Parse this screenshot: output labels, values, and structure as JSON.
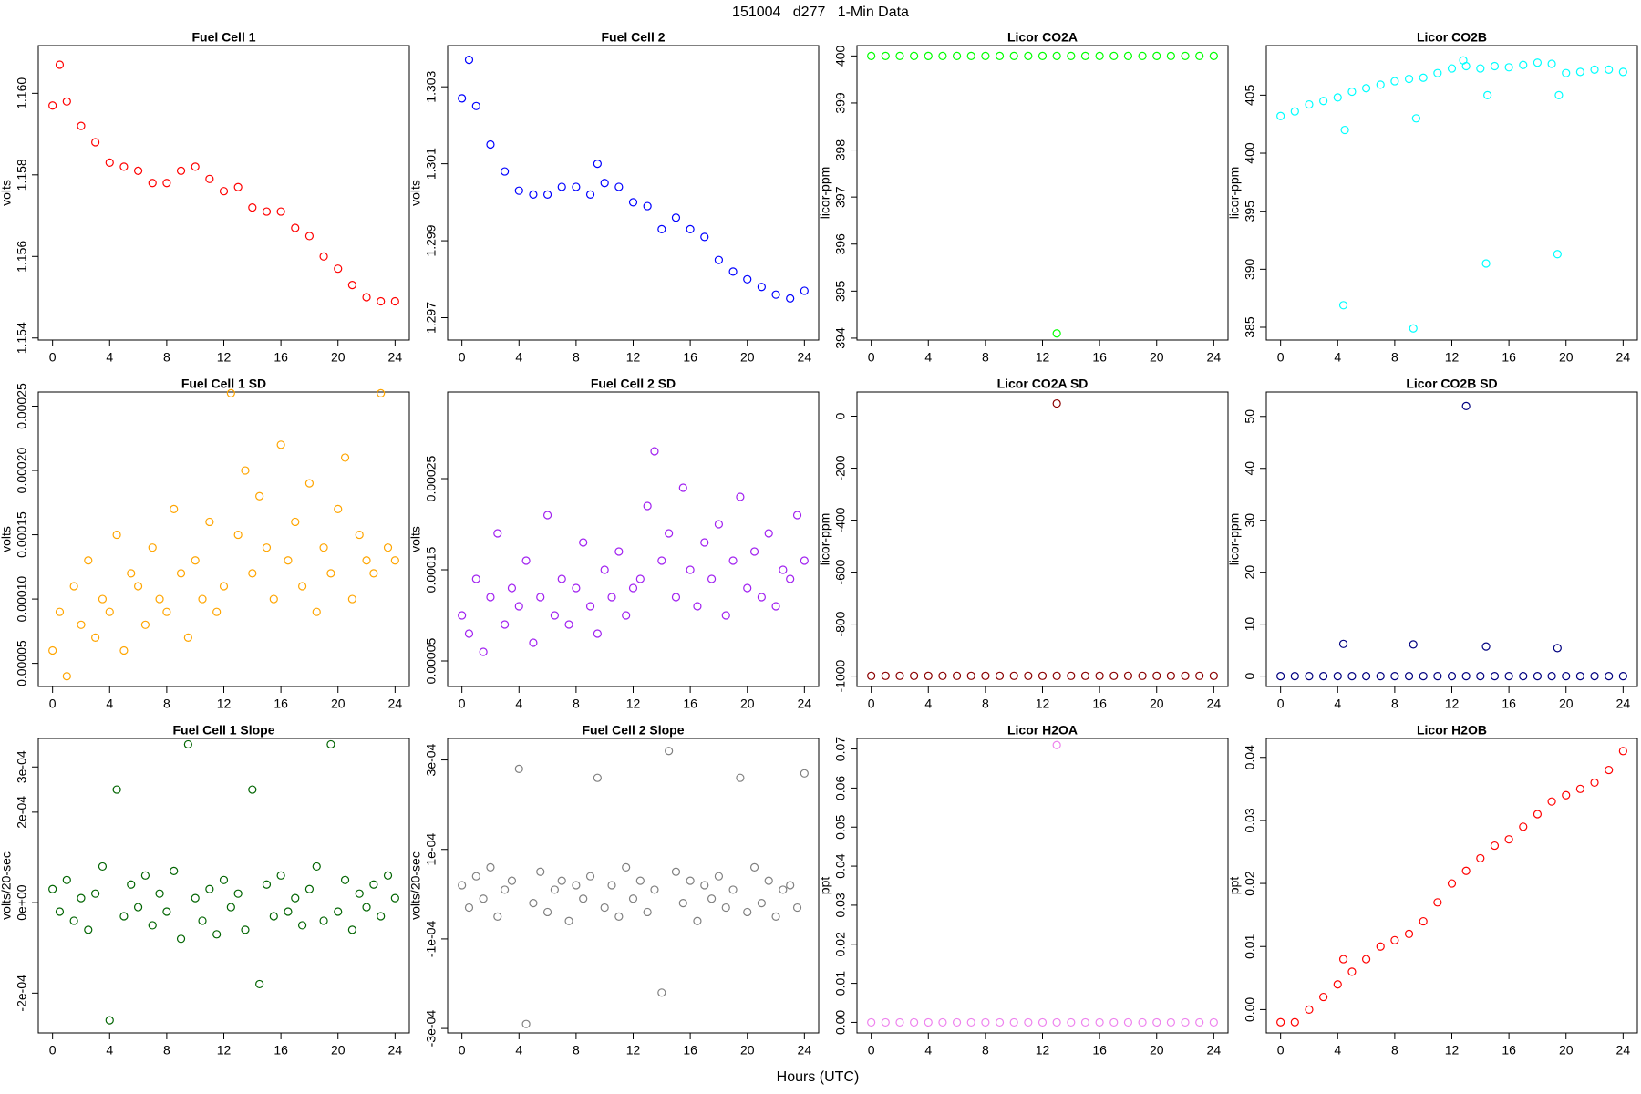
{
  "title": "151004   d277   1-Min Data",
  "x_label": "Hours (UTC)",
  "chart_data": [
    {
      "type": "scatter",
      "title": "Fuel Cell 1",
      "y_label": "volts",
      "color": "#ff0000",
      "x": [
        0,
        0.5,
        1,
        2,
        3,
        4,
        5,
        6,
        7,
        8,
        9,
        10,
        11,
        12,
        13,
        14,
        15,
        16,
        17,
        18,
        19,
        20,
        21,
        22,
        23,
        24
      ],
      "values": [
        1.1597,
        1.1607,
        1.1598,
        1.1592,
        1.1588,
        1.1583,
        1.1582,
        1.1581,
        1.1578,
        1.1578,
        1.1581,
        1.1582,
        1.1579,
        1.1576,
        1.1577,
        1.1572,
        1.1571,
        1.1571,
        1.1567,
        1.1565,
        1.156,
        1.1557,
        1.1553,
        1.155,
        1.1549,
        1.1549
      ],
      "xlim": [
        -1,
        25
      ],
      "xticks": [
        0,
        4,
        8,
        12,
        16,
        20,
        24
      ],
      "ylim": [
        1.15395,
        1.16117
      ],
      "yticks": [
        1.154,
        1.156,
        1.158,
        {
          "value": 1.16,
          "label": "1.160"
        }
      ]
    },
    {
      "type": "scatter",
      "title": "Fuel Cell 2",
      "y_label": "volts",
      "color": "#0000ff",
      "x": [
        0,
        0.5,
        1,
        2,
        3,
        4,
        5,
        6,
        7,
        8,
        9,
        9.5,
        10,
        11,
        12,
        13,
        14,
        15,
        16,
        17,
        18,
        19,
        20,
        21,
        22,
        23,
        24
      ],
      "values": [
        1.3027,
        1.3037,
        1.3025,
        1.3015,
        1.3008,
        1.3003,
        1.3002,
        1.3002,
        1.3004,
        1.3004,
        1.3002,
        1.301,
        1.3005,
        1.3004,
        1.3,
        1.2999,
        1.2993,
        1.2996,
        1.2993,
        1.2991,
        1.2985,
        1.2982,
        1.298,
        1.2978,
        1.2976,
        1.2975,
        1.2977
      ],
      "xlim": [
        -1,
        25
      ],
      "xticks": [
        0,
        4,
        8,
        12,
        16,
        20,
        24
      ],
      "ylim": [
        1.29642,
        1.30407
      ],
      "yticks": [
        1.297,
        1.299,
        1.301,
        1.303
      ]
    },
    {
      "type": "scatter",
      "title": "Licor CO2A",
      "y_label": "licor-ppm",
      "color": "#00ff00",
      "x": [
        0,
        1,
        2,
        3,
        4,
        5,
        6,
        7,
        8,
        9,
        10,
        11,
        12,
        13,
        14,
        15,
        16,
        17,
        18,
        19,
        20,
        21,
        22,
        23,
        24,
        13
      ],
      "values": [
        400,
        400,
        400,
        400,
        400,
        400,
        400,
        400,
        400,
        400,
        400,
        400,
        400,
        400,
        400,
        400,
        400,
        400,
        400,
        400,
        400,
        400,
        400,
        400,
        400,
        394.1
      ],
      "xlim": [
        -1,
        25
      ],
      "xticks": [
        0,
        4,
        8,
        12,
        16,
        20,
        24
      ],
      "ylim": [
        393.96,
        400.22
      ],
      "yticks": [
        394,
        395,
        396,
        397,
        398,
        399,
        400
      ]
    },
    {
      "type": "scatter",
      "title": "Licor CO2B",
      "y_label": "licor-ppm",
      "color": "#00ffff",
      "x": [
        0,
        1,
        2,
        3,
        4,
        4.4,
        4.5,
        5,
        6,
        7,
        8,
        9,
        9.3,
        9.5,
        10,
        11,
        12,
        12.8,
        13,
        14,
        14.4,
        14.5,
        15,
        16,
        17,
        18,
        19,
        19.4,
        19.5,
        20,
        21,
        22,
        23,
        24
      ],
      "values": [
        403.2,
        403.6,
        404.2,
        404.5,
        404.8,
        386.9,
        402,
        405.3,
        405.6,
        405.9,
        406.2,
        406.4,
        384.9,
        403,
        406.5,
        406.9,
        407.3,
        408,
        407.5,
        407.3,
        390.5,
        405,
        407.5,
        407.4,
        407.6,
        407.8,
        407.7,
        391.3,
        405,
        406.9,
        407,
        407.2,
        407.2,
        407
      ],
      "xlim": [
        -1,
        25
      ],
      "xticks": [
        0,
        4,
        8,
        12,
        16,
        20,
        24
      ],
      "ylim": [
        383.9,
        409.27
      ],
      "yticks": [
        385,
        390,
        395,
        400,
        405
      ]
    },
    {
      "type": "scatter",
      "title": "Fuel Cell 1 SD",
      "y_label": "volts",
      "color": "#ffa500",
      "x": [
        0,
        0.5,
        1,
        1.5,
        2,
        2.5,
        3,
        3.5,
        4,
        4.5,
        5,
        5.5,
        6,
        6.5,
        7,
        7.5,
        8,
        8.5,
        9,
        9.5,
        10,
        10.5,
        11,
        11.5,
        12,
        12.5,
        13,
        13.5,
        14,
        14.5,
        15,
        15.5,
        16,
        16.5,
        17,
        17.5,
        18,
        18.5,
        19,
        19.5,
        20,
        20.5,
        21,
        21.5,
        22,
        22.5,
        23,
        23.5,
        24
      ],
      "values": [
        6e-05,
        9e-05,
        4e-05,
        0.00011,
        8e-05,
        0.00013,
        7e-05,
        0.0001,
        9e-05,
        0.00015,
        6e-05,
        0.00012,
        0.00011,
        8e-05,
        0.00014,
        0.0001,
        9e-05,
        0.00017,
        0.00012,
        7e-05,
        0.00013,
        0.0001,
        0.00016,
        9e-05,
        0.00011,
        0.00026,
        0.00015,
        0.0002,
        0.00012,
        0.00018,
        0.00014,
        0.0001,
        0.00022,
        0.00013,
        0.00016,
        0.00011,
        0.00019,
        9e-05,
        0.00014,
        0.00012,
        0.00017,
        0.00021,
        0.0001,
        0.00015,
        0.00013,
        0.00012,
        0.00026,
        0.00014,
        0.00013
      ],
      "xlim": [
        -1,
        25
      ],
      "xticks": [
        0,
        4,
        8,
        12,
        16,
        20,
        24
      ],
      "ylim": [
        3.2e-05,
        0.000261
      ],
      "yticks": [
        5e-05,
        {
          "value": 0.0001,
          "label": "0.00010"
        },
        0.00015,
        {
          "value": 0.0002,
          "label": "0.00020"
        },
        0.00025
      ]
    },
    {
      "type": "scatter",
      "title": "Fuel Cell 2 SD",
      "y_label": "volts",
      "color": "#a020f0",
      "x": [
        0,
        0.5,
        1,
        1.5,
        2,
        2.5,
        3,
        3.5,
        4,
        4.5,
        5,
        5.5,
        6,
        6.5,
        7,
        7.5,
        8,
        8.5,
        9,
        9.5,
        10,
        10.5,
        11,
        11.5,
        12,
        12.5,
        13,
        13.5,
        14,
        14.5,
        15,
        15.5,
        16,
        16.5,
        17,
        17.5,
        18,
        18.5,
        19,
        19.5,
        20,
        20.5,
        21,
        21.5,
        22,
        22.5,
        23,
        23.5,
        24
      ],
      "values": [
        0.0001,
        8e-05,
        0.00014,
        6e-05,
        0.00012,
        0.00019,
        9e-05,
        0.00013,
        0.00011,
        0.00016,
        7e-05,
        0.00012,
        0.00021,
        0.0001,
        0.00014,
        9e-05,
        0.00013,
        0.00018,
        0.00011,
        8e-05,
        0.00015,
        0.00012,
        0.00017,
        0.0001,
        0.00013,
        0.00014,
        0.00022,
        0.00028,
        0.00016,
        0.00019,
        0.00012,
        0.00024,
        0.00015,
        0.00011,
        0.00018,
        0.00014,
        0.0002,
        0.0001,
        0.00016,
        0.00023,
        0.00013,
        0.00017,
        0.00012,
        0.00019,
        0.00011,
        0.00015,
        0.00014,
        0.00021,
        0.00016
      ],
      "xlim": [
        -1,
        25
      ],
      "xticks": [
        0,
        4,
        8,
        12,
        16,
        20,
        24
      ],
      "ylim": [
        2.2e-05,
        0.000345
      ],
      "yticks": [
        5e-05,
        0.00015,
        0.00025
      ]
    },
    {
      "type": "scatter",
      "title": "Licor CO2A SD",
      "y_label": "licor-ppm",
      "color": "#8b0000",
      "x": [
        0,
        1,
        2,
        3,
        4,
        5,
        6,
        7,
        8,
        9,
        10,
        11,
        12,
        13,
        14,
        15,
        16,
        17,
        18,
        19,
        20,
        21,
        22,
        23,
        24,
        13
      ],
      "values": [
        -999,
        -999,
        -999,
        -999,
        -999,
        -999,
        -999,
        -999,
        -999,
        -999,
        -999,
        -999,
        -999,
        -999,
        -999,
        -999,
        -999,
        -999,
        -999,
        -999,
        -999,
        -999,
        -999,
        -999,
        -999,
        49
      ],
      "xlim": [
        -1,
        25
      ],
      "xticks": [
        0,
        4,
        8,
        12,
        16,
        20,
        24
      ],
      "ylim": [
        -1040,
        93
      ],
      "yticks": [
        -1000,
        -800,
        -600,
        -400,
        -200,
        0
      ]
    },
    {
      "type": "scatter",
      "title": "Licor CO2B SD",
      "y_label": "licor-ppm",
      "color": "#000080",
      "x": [
        0,
        1,
        2,
        3,
        4,
        5,
        6,
        7,
        8,
        9,
        10,
        11,
        12,
        13,
        14,
        15,
        16,
        17,
        18,
        19,
        20,
        21,
        22,
        23,
        24,
        4.4,
        9.3,
        13,
        14.4,
        19.4
      ],
      "values": [
        0,
        0,
        0,
        0,
        0,
        0,
        0,
        0,
        0,
        0,
        0,
        0,
        0,
        0,
        0,
        0,
        0,
        0,
        0,
        0,
        0,
        0,
        0,
        0,
        0,
        6.2,
        6.1,
        52,
        5.7,
        5.4
      ],
      "xlim": [
        -1,
        25
      ],
      "xticks": [
        0,
        4,
        8,
        12,
        16,
        20,
        24
      ],
      "ylim": [
        -2,
        54.7
      ],
      "yticks": [
        0,
        10,
        20,
        30,
        40,
        50
      ]
    },
    {
      "type": "scatter",
      "title": "Fuel Cell 1 Slope",
      "y_label": "volts/20-sec",
      "color": "#006400",
      "x": [
        0,
        0.5,
        1,
        1.5,
        2,
        2.5,
        3,
        3.5,
        4,
        4.5,
        5,
        5.5,
        6,
        6.5,
        7,
        7.5,
        8,
        8.5,
        9,
        9.5,
        10,
        10.5,
        11,
        11.5,
        12,
        12.5,
        13,
        13.5,
        14,
        14.5,
        15,
        15.5,
        16,
        16.5,
        17,
        17.5,
        18,
        18.5,
        19,
        19.5,
        20,
        20.5,
        21,
        21.5,
        22,
        22.5,
        23,
        23.5,
        24
      ],
      "values": [
        3e-05,
        -2e-05,
        5e-05,
        -4e-05,
        1e-05,
        -6e-05,
        2e-05,
        8e-05,
        -0.00026,
        0.00025,
        -3e-05,
        4e-05,
        -1e-05,
        6e-05,
        -5e-05,
        2e-05,
        -2e-05,
        7e-05,
        -8e-05,
        0.00035,
        1e-05,
        -4e-05,
        3e-05,
        -7e-05,
        5e-05,
        -1e-05,
        2e-05,
        -6e-05,
        0.00025,
        -0.00018,
        4e-05,
        -3e-05,
        6e-05,
        -2e-05,
        1e-05,
        -5e-05,
        3e-05,
        8e-05,
        -4e-05,
        0.00035,
        -2e-05,
        5e-05,
        -6e-05,
        2e-05,
        -1e-05,
        4e-05,
        -3e-05,
        6e-05,
        1e-05
      ],
      "xlim": [
        -1,
        25
      ],
      "xticks": [
        0,
        4,
        8,
        12,
        16,
        20,
        24
      ],
      "ylim": [
        -0.000288,
        0.000363
      ],
      "yticks": [
        {
          "value": -0.0002,
          "label": "-2e-04"
        },
        {
          "value": 0,
          "label": "0e+00"
        },
        {
          "value": 0.0002,
          "label": "2e-04"
        },
        {
          "value": 0.0003,
          "label": "3e-04"
        }
      ]
    },
    {
      "type": "scatter",
      "title": "Fuel Cell 2 Slope",
      "y_label": "volts/20-sec",
      "color": "#808080",
      "x": [
        0,
        0.5,
        1,
        1.5,
        2,
        2.5,
        3,
        3.5,
        4,
        4.5,
        5,
        5.5,
        6,
        6.5,
        7,
        7.5,
        8,
        8.5,
        9,
        9.5,
        10,
        10.5,
        11,
        11.5,
        12,
        12.5,
        13,
        13.5,
        14,
        14.5,
        15,
        15.5,
        16,
        16.5,
        17,
        17.5,
        18,
        18.5,
        19,
        19.5,
        20,
        20.5,
        21,
        21.5,
        22,
        22.5,
        23,
        23.5,
        24
      ],
      "values": [
        2e-05,
        -3e-05,
        4e-05,
        -1e-05,
        6e-05,
        -5e-05,
        1e-05,
        3e-05,
        0.00028,
        -0.00029,
        -2e-05,
        5e-05,
        -4e-05,
        1e-05,
        3e-05,
        -6e-05,
        2e-05,
        -1e-05,
        4e-05,
        0.00026,
        -3e-05,
        2e-05,
        -5e-05,
        6e-05,
        -1e-05,
        3e-05,
        -4e-05,
        1e-05,
        -0.00022,
        0.00032,
        5e-05,
        -2e-05,
        3e-05,
        -6e-05,
        2e-05,
        -1e-05,
        4e-05,
        -3e-05,
        1e-05,
        0.00026,
        -4e-05,
        6e-05,
        -2e-05,
        3e-05,
        -5e-05,
        1e-05,
        2e-05,
        -3e-05,
        0.00027
      ],
      "xlim": [
        -1,
        25
      ],
      "xticks": [
        0,
        4,
        8,
        12,
        16,
        20,
        24
      ],
      "ylim": [
        -0.00031,
        0.000348
      ],
      "yticks": [
        {
          "value": -0.0003,
          "label": "-3e-04"
        },
        {
          "value": -0.0001,
          "label": "-1e-04"
        },
        {
          "value": 0.0001,
          "label": "1e-04"
        },
        {
          "value": 0.0003,
          "label": "3e-04"
        }
      ]
    },
    {
      "type": "scatter",
      "title": "Licor H2OA",
      "y_label": "ppt",
      "color": "#ee82ee",
      "x": [
        0,
        1,
        2,
        3,
        4,
        5,
        6,
        7,
        8,
        9,
        10,
        11,
        12,
        13,
        14,
        15,
        16,
        17,
        18,
        19,
        20,
        21,
        22,
        23,
        24,
        13
      ],
      "values": [
        0,
        0,
        0,
        0,
        0,
        0,
        0,
        0,
        0,
        0,
        0,
        0,
        0,
        0,
        0,
        0,
        0,
        0,
        0,
        0,
        0,
        0,
        0,
        0,
        0,
        0.071
      ],
      "xlim": [
        -1,
        25
      ],
      "xticks": [
        0,
        4,
        8,
        12,
        16,
        20,
        24
      ],
      "ylim": [
        -0.0027,
        0.0727
      ],
      "yticks": [
        {
          "value": 0,
          "label": "0.00"
        },
        {
          "value": 0.01,
          "label": "0.01"
        },
        {
          "value": 0.02,
          "label": "0.02"
        },
        {
          "value": 0.03,
          "label": "0.03"
        },
        {
          "value": 0.04,
          "label": "0.04"
        },
        {
          "value": 0.05,
          "label": "0.05"
        },
        {
          "value": 0.06,
          "label": "0.06"
        },
        {
          "value": 0.07,
          "label": "0.07"
        }
      ]
    },
    {
      "type": "scatter",
      "title": "Licor H2OB",
      "y_label": "ppt",
      "color": "#ff0000",
      "x": [
        0,
        1,
        2,
        3,
        4,
        4.4,
        5,
        6,
        7,
        8,
        9,
        10,
        11,
        12,
        13,
        14,
        15,
        16,
        17,
        18,
        19,
        20,
        21,
        22,
        23,
        24
      ],
      "values": [
        -0.002,
        -0.002,
        0,
        0.002,
        0.004,
        0.008,
        0.006,
        0.008,
        0.01,
        0.011,
        0.012,
        0.014,
        0.017,
        0.02,
        0.022,
        0.024,
        0.026,
        0.027,
        0.029,
        0.031,
        0.033,
        0.034,
        0.035,
        0.036,
        0.038,
        0.041
      ],
      "xlim": [
        -1,
        25
      ],
      "xticks": [
        0,
        4,
        8,
        12,
        16,
        20,
        24
      ],
      "ylim": [
        -0.0037,
        0.043
      ],
      "yticks": [
        {
          "value": 0,
          "label": "0.00"
        },
        {
          "value": 0.01,
          "label": "0.01"
        },
        {
          "value": 0.02,
          "label": "0.02"
        },
        {
          "value": 0.03,
          "label": "0.03"
        },
        {
          "value": 0.04,
          "label": "0.04"
        }
      ]
    }
  ]
}
